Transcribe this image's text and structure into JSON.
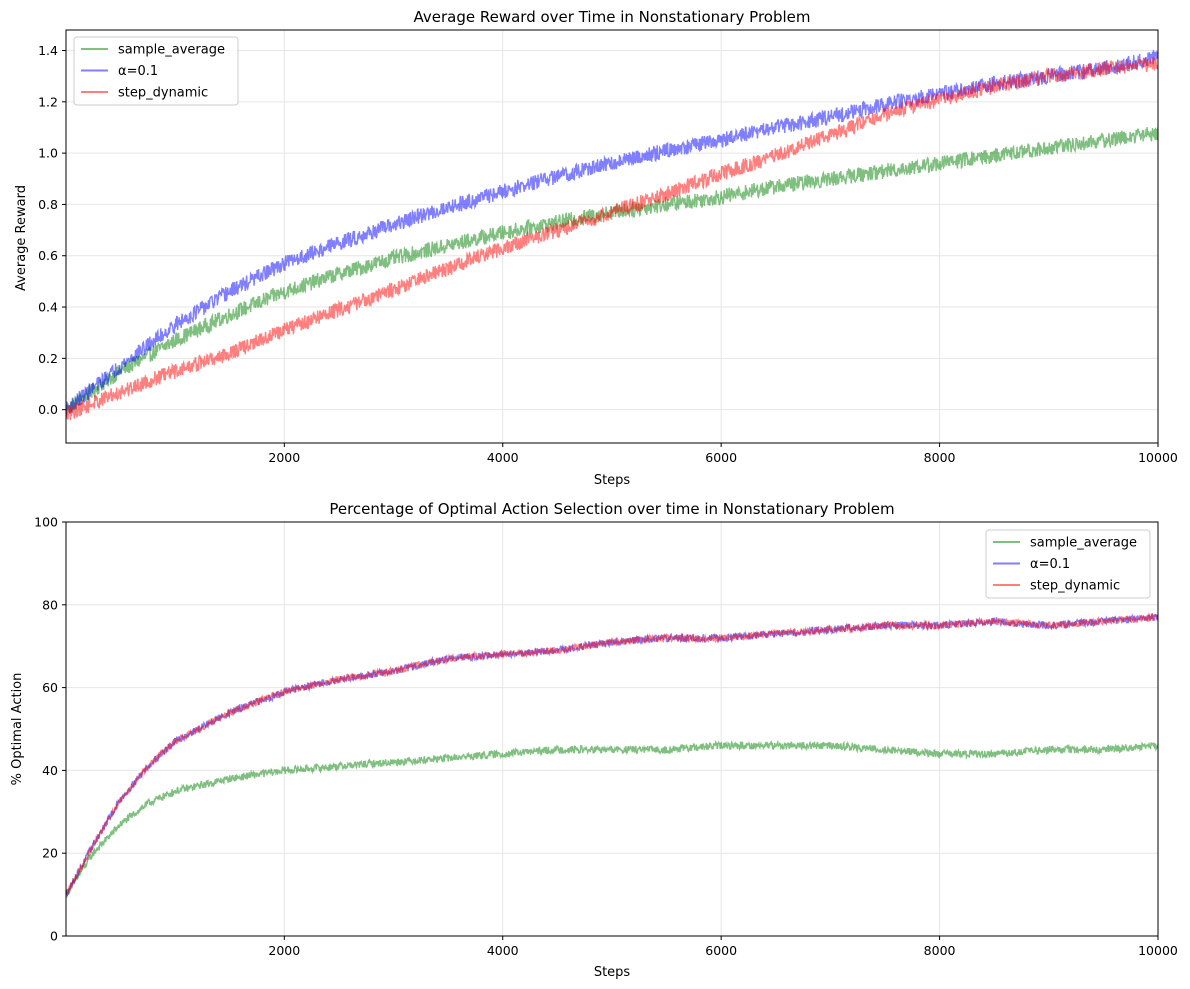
{
  "chart_data": [
    {
      "type": "line",
      "title": "Average Reward over Time in Nonstationary Problem",
      "xlabel": "Steps",
      "ylabel": "Average Reward",
      "xlim": [
        1,
        10000
      ],
      "ylim": [
        -0.13,
        1.48
      ],
      "x_ticks": [
        2000,
        4000,
        6000,
        8000,
        10000
      ],
      "y_ticks": [
        0.0,
        0.2,
        0.4,
        0.6,
        0.8,
        1.0,
        1.2,
        1.4
      ],
      "x_tick_labels": [
        "2000",
        "4000",
        "6000",
        "8000",
        "10000"
      ],
      "y_tick_labels": [
        "0.0",
        "0.2",
        "0.4",
        "0.6",
        "0.8",
        "1.0",
        "1.2",
        "1.4"
      ],
      "grid": true,
      "legend_position": "top-left",
      "series": [
        {
          "name": "sample_average",
          "color": "#008000",
          "x": [
            1,
            500,
            1000,
            1500,
            2000,
            2500,
            3000,
            3500,
            4000,
            4500,
            5000,
            5500,
            6000,
            6500,
            7000,
            7500,
            8000,
            8500,
            9000,
            9500,
            10000
          ],
          "y": [
            0.0,
            0.15,
            0.27,
            0.37,
            0.46,
            0.53,
            0.59,
            0.64,
            0.69,
            0.73,
            0.77,
            0.8,
            0.83,
            0.87,
            0.9,
            0.93,
            0.96,
            0.99,
            1.02,
            1.05,
            1.08
          ],
          "noise": 0.03
        },
        {
          "name": "α=0.1",
          "color": "#0000ff",
          "x": [
            1,
            500,
            1000,
            1500,
            2000,
            2500,
            3000,
            3500,
            4000,
            4500,
            5000,
            5500,
            6000,
            6500,
            7000,
            7500,
            8000,
            8500,
            9000,
            9500,
            10000
          ],
          "y": [
            0.0,
            0.17,
            0.33,
            0.46,
            0.57,
            0.65,
            0.72,
            0.79,
            0.85,
            0.91,
            0.96,
            1.01,
            1.05,
            1.1,
            1.14,
            1.19,
            1.23,
            1.27,
            1.3,
            1.33,
            1.37
          ],
          "noise": 0.03
        },
        {
          "name": "step_dynamic",
          "color": "#ff0000",
          "x": [
            1,
            500,
            1000,
            1500,
            2000,
            2500,
            3000,
            3500,
            4000,
            4500,
            5000,
            5500,
            6000,
            6500,
            7000,
            7500,
            8000,
            8500,
            9000,
            9500,
            10000
          ],
          "y": [
            -0.02,
            0.07,
            0.15,
            0.22,
            0.31,
            0.39,
            0.47,
            0.55,
            0.63,
            0.7,
            0.77,
            0.84,
            0.92,
            0.99,
            1.07,
            1.15,
            1.21,
            1.26,
            1.3,
            1.33,
            1.35
          ],
          "noise": 0.03
        }
      ]
    },
    {
      "type": "line",
      "title": "Percentage of Optimal Action Selection over time in Nonstationary Problem",
      "xlabel": "Steps",
      "ylabel": "% Optimal Action",
      "xlim": [
        1,
        10000
      ],
      "ylim": [
        0,
        100
      ],
      "x_ticks": [
        2000,
        4000,
        6000,
        8000,
        10000
      ],
      "y_ticks": [
        0,
        20,
        40,
        60,
        80,
        100
      ],
      "x_tick_labels": [
        "2000",
        "4000",
        "6000",
        "8000",
        "10000"
      ],
      "y_tick_labels": [
        "0",
        "20",
        "40",
        "60",
        "80",
        "100"
      ],
      "grid": true,
      "legend_position": "top-right",
      "series": [
        {
          "name": "sample_average",
          "color": "#008000",
          "x": [
            1,
            250,
            500,
            750,
            1000,
            1500,
            2000,
            2500,
            3000,
            3500,
            4000,
            4500,
            5000,
            5500,
            6000,
            6500,
            7000,
            7500,
            8000,
            8500,
            9000,
            9500,
            10000
          ],
          "y": [
            10,
            20,
            27,
            32,
            35,
            38,
            40,
            41,
            42,
            43,
            44,
            45,
            45,
            45,
            46,
            46,
            46,
            45,
            44,
            44,
            45,
            45,
            46
          ],
          "noise": 0.9
        },
        {
          "name": "α=0.1",
          "color": "#0000ff",
          "x": [
            1,
            250,
            500,
            750,
            1000,
            1500,
            2000,
            2500,
            3000,
            3500,
            4000,
            4500,
            5000,
            5500,
            6000,
            6500,
            7000,
            7500,
            8000,
            8500,
            9000,
            9500,
            10000
          ],
          "y": [
            10,
            22,
            33,
            41,
            47,
            54,
            59,
            62,
            64,
            67,
            68,
            69,
            71,
            72,
            72,
            73,
            74,
            75,
            75,
            76,
            75,
            76,
            77
          ],
          "noise": 0.9
        },
        {
          "name": "step_dynamic",
          "color": "#ff0000",
          "x": [
            1,
            250,
            500,
            750,
            1000,
            1500,
            2000,
            2500,
            3000,
            3500,
            4000,
            4500,
            5000,
            5500,
            6000,
            6500,
            7000,
            7500,
            8000,
            8500,
            9000,
            9500,
            10000
          ],
          "y": [
            10,
            22,
            33,
            41,
            47,
            54,
            59,
            62,
            64,
            67,
            68,
            69,
            71,
            72,
            72,
            73,
            74,
            75,
            75,
            76,
            75,
            76,
            77
          ],
          "noise": 0.9
        }
      ]
    }
  ]
}
